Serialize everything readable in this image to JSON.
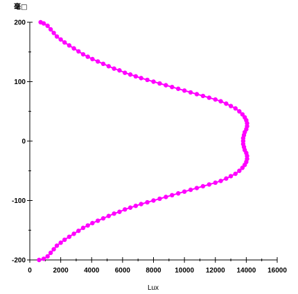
{
  "chart_data": {
    "type": "scatter",
    "xlabel": "Lux",
    "ylabel": "毫□",
    "xlim": [
      0,
      16000
    ],
    "ylim": [
      -200,
      200
    ],
    "x_ticks": [
      0,
      2000,
      4000,
      6000,
      8000,
      10000,
      12000,
      14000,
      16000
    ],
    "y_ticks": [
      -200,
      -100,
      0,
      100,
      200
    ],
    "grid": false,
    "color": "#ff00ff",
    "series": [
      {
        "points": [
          [
            600,
            -200
          ],
          [
            900,
            -198
          ],
          [
            1150,
            -194
          ],
          [
            1350,
            -188
          ],
          [
            1550,
            -182
          ],
          [
            1750,
            -176
          ],
          [
            2000,
            -171
          ],
          [
            2250,
            -166
          ],
          [
            2550,
            -161
          ],
          [
            2850,
            -156
          ],
          [
            3150,
            -151
          ],
          [
            3450,
            -146
          ],
          [
            3750,
            -142
          ],
          [
            4050,
            -138
          ],
          [
            4400,
            -134
          ],
          [
            4750,
            -130
          ],
          [
            5100,
            -126
          ],
          [
            5450,
            -122
          ],
          [
            5800,
            -119
          ],
          [
            6150,
            -115
          ],
          [
            6500,
            -112
          ],
          [
            6850,
            -109
          ],
          [
            7200,
            -106
          ],
          [
            7600,
            -103
          ],
          [
            8000,
            -100
          ],
          [
            8400,
            -97
          ],
          [
            8800,
            -94
          ],
          [
            9200,
            -91
          ],
          [
            9600,
            -88
          ],
          [
            10000,
            -85
          ],
          [
            10400,
            -82
          ],
          [
            10800,
            -79
          ],
          [
            11200,
            -76
          ],
          [
            11600,
            -73
          ],
          [
            12000,
            -70
          ],
          [
            12350,
            -67
          ],
          [
            12700,
            -63
          ],
          [
            13000,
            -59
          ],
          [
            13300,
            -55
          ],
          [
            13550,
            -50
          ],
          [
            13750,
            -45
          ],
          [
            13900,
            -40
          ],
          [
            14000,
            -35
          ],
          [
            14050,
            -30
          ],
          [
            14050,
            -25
          ],
          [
            14000,
            -20
          ],
          [
            13900,
            -15
          ],
          [
            13850,
            -10
          ],
          [
            13800,
            -5
          ],
          [
            13800,
            0
          ],
          [
            13800,
            5
          ],
          [
            13850,
            10
          ],
          [
            13900,
            15
          ],
          [
            14000,
            20
          ],
          [
            14050,
            25
          ],
          [
            14050,
            30
          ],
          [
            14000,
            35
          ],
          [
            13900,
            40
          ],
          [
            13750,
            45
          ],
          [
            13550,
            50
          ],
          [
            13300,
            55
          ],
          [
            13000,
            59
          ],
          [
            12700,
            63
          ],
          [
            12350,
            67
          ],
          [
            12000,
            70
          ],
          [
            11600,
            73
          ],
          [
            11200,
            76
          ],
          [
            10800,
            79
          ],
          [
            10400,
            82
          ],
          [
            10000,
            85
          ],
          [
            9600,
            88
          ],
          [
            9200,
            91
          ],
          [
            8800,
            94
          ],
          [
            8400,
            97
          ],
          [
            8000,
            100
          ],
          [
            7600,
            103
          ],
          [
            7200,
            106
          ],
          [
            6850,
            109
          ],
          [
            6500,
            112
          ],
          [
            6150,
            115
          ],
          [
            5800,
            119
          ],
          [
            5450,
            122
          ],
          [
            5100,
            126
          ],
          [
            4750,
            130
          ],
          [
            4400,
            134
          ],
          [
            4050,
            138
          ],
          [
            3750,
            142
          ],
          [
            3450,
            146
          ],
          [
            3150,
            151
          ],
          [
            2850,
            156
          ],
          [
            2550,
            161
          ],
          [
            2250,
            166
          ],
          [
            2000,
            171
          ],
          [
            1750,
            176
          ],
          [
            1550,
            182
          ],
          [
            1350,
            188
          ],
          [
            1150,
            194
          ],
          [
            900,
            198
          ],
          [
            700,
            200
          ]
        ]
      }
    ]
  }
}
